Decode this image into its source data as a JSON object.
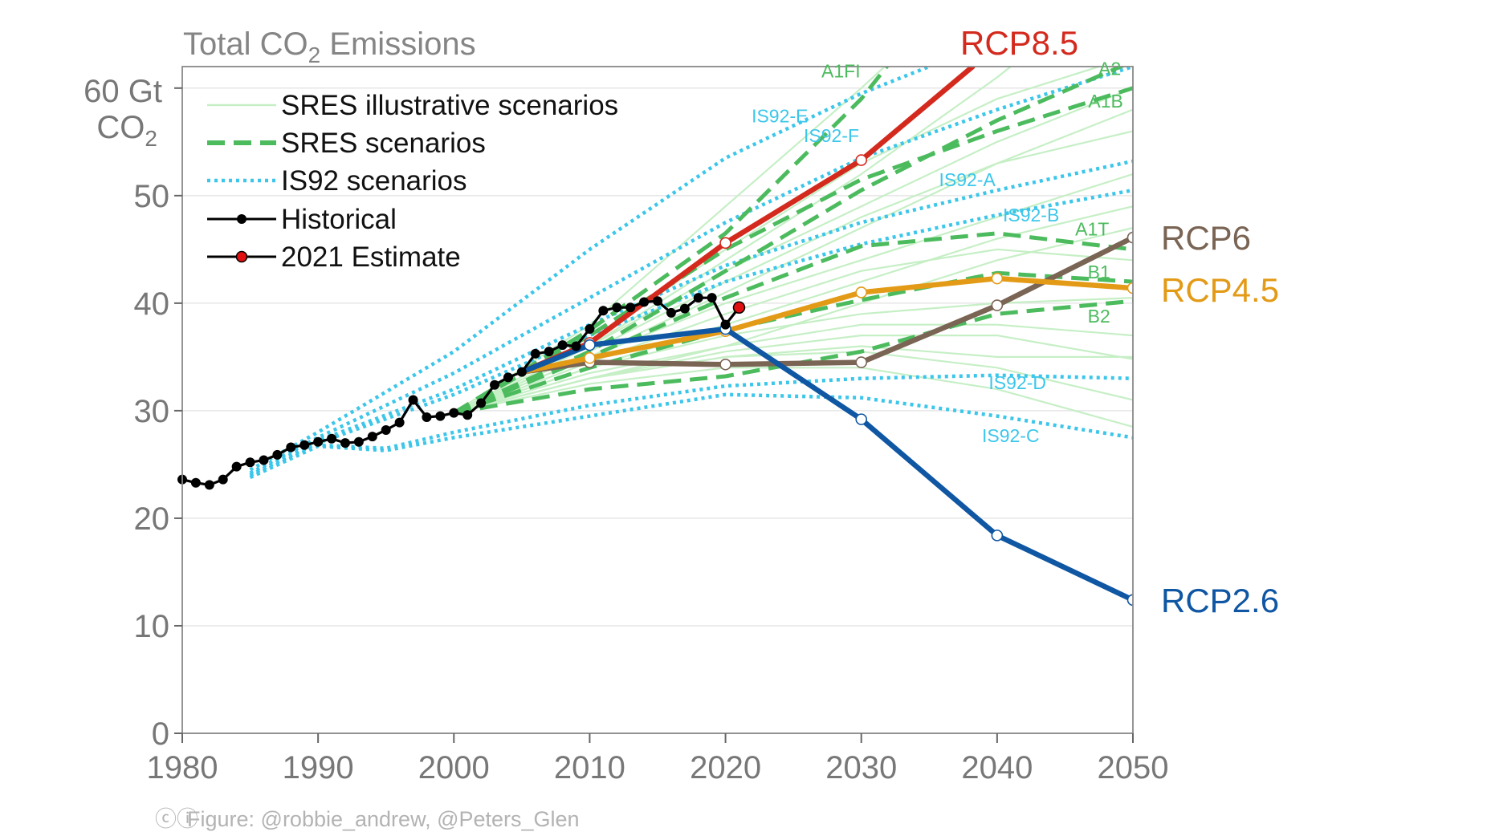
{
  "colors": {
    "sres_illustrative": "#c6efc6",
    "sres": "#4cbb5e",
    "is92": "#3cc6ea",
    "historical": "#000000",
    "estimate": "#e01010",
    "rcp85": "#d42a1e",
    "rcp6": "#7a6454",
    "rcp45": "#e39a16",
    "rcp26": "#0f56a3",
    "axis": "#666666",
    "grid": "#e6e6e6"
  },
  "credit": "Figure: @robbie_andrew, @Peters_Glen",
  "chart_data": {
    "type": "line",
    "title": "Total CO",
    "title_subscript": "2",
    "title_suffix": " Emissions",
    "ylabel_line1": "60 Gt",
    "ylabel_line2": "CO",
    "ylabel_subscript": "2",
    "xlim": [
      1980,
      2050
    ],
    "ylim": [
      0,
      62
    ],
    "x_ticks": [
      1980,
      1990,
      2000,
      2010,
      2020,
      2030,
      2040,
      2050
    ],
    "y_ticks": [
      0,
      10,
      20,
      30,
      40,
      50,
      60
    ],
    "y_tick_labels": [
      "0",
      "10",
      "20",
      "30",
      "40",
      "50",
      ""
    ],
    "legend": {
      "position": "top-left",
      "entries": [
        {
          "key": "sres_illustrative",
          "label": "SRES illustrative scenarios"
        },
        {
          "key": "sres",
          "label": "SRES scenarios"
        },
        {
          "key": "is92",
          "label": "IS92 scenarios"
        },
        {
          "key": "historical",
          "label": "Historical"
        },
        {
          "key": "estimate",
          "label": "2021 Estimate"
        }
      ]
    },
    "historical": {
      "x": [
        1980,
        1981,
        1982,
        1983,
        1984,
        1985,
        1986,
        1987,
        1988,
        1989,
        1990,
        1991,
        1992,
        1993,
        1994,
        1995,
        1996,
        1997,
        1998,
        1999,
        2000,
        2001,
        2002,
        2003,
        2004,
        2005,
        2006,
        2007,
        2008,
        2009,
        2010,
        2011,
        2012,
        2013,
        2014,
        2015,
        2016,
        2017,
        2018,
        2019,
        2020
      ],
      "y": [
        23.6,
        23.3,
        23.1,
        23.6,
        24.8,
        25.2,
        25.4,
        25.9,
        26.6,
        26.8,
        27.1,
        27.4,
        27.0,
        27.1,
        27.6,
        28.2,
        28.9,
        31.0,
        29.4,
        29.5,
        29.8,
        29.6,
        30.7,
        32.4,
        33.1,
        33.6,
        35.3,
        35.5,
        36.1,
        36.0,
        37.6,
        39.3,
        39.6,
        39.6,
        40.1,
        40.2,
        39.1,
        39.5,
        40.5,
        40.5,
        38.0
      ]
    },
    "estimate": {
      "x": [
        2020,
        2021
      ],
      "y": [
        38.0,
        39.6
      ]
    },
    "rcp": [
      {
        "name": "RCP8.5",
        "key": "rcp85",
        "x": [
          2005,
          2010,
          2020,
          2030,
          2038.2
        ],
        "y": [
          33.6,
          36.3,
          45.6,
          53.3,
          62
        ]
      },
      {
        "name": "RCP6",
        "key": "rcp6",
        "x": [
          2005,
          2010,
          2020,
          2030,
          2040,
          2050
        ],
        "y": [
          33.6,
          34.5,
          34.3,
          34.5,
          39.8,
          46.1
        ]
      },
      {
        "name": "RCP4.5",
        "key": "rcp45",
        "x": [
          2005,
          2010,
          2020,
          2030,
          2040,
          2050
        ],
        "y": [
          33.6,
          34.9,
          37.4,
          41.0,
          42.3,
          41.4
        ]
      },
      {
        "name": "RCP2.6",
        "key": "rcp26",
        "x": [
          2005,
          2010,
          2020,
          2030,
          2040,
          2050
        ],
        "y": [
          33.6,
          36.1,
          37.6,
          29.2,
          18.4,
          12.4
        ]
      }
    ],
    "sres": [
      {
        "name": "A1FI",
        "x": [
          2000,
          2010,
          2020,
          2030,
          2035
        ],
        "y": [
          29.8,
          37.5,
          46.5,
          59.0,
          67.0
        ]
      },
      {
        "name": "A2",
        "x": [
          2000,
          2010,
          2020,
          2030,
          2040,
          2050
        ],
        "y": [
          29.8,
          35.5,
          43.0,
          50.5,
          57.0,
          62.5
        ]
      },
      {
        "name": "A1B",
        "x": [
          2000,
          2010,
          2020,
          2030,
          2040,
          2050
        ],
        "y": [
          29.8,
          37.0,
          45.0,
          51.5,
          56.0,
          60.0
        ]
      },
      {
        "name": "A1T",
        "x": [
          2000,
          2010,
          2020,
          2030,
          2040,
          2050
        ],
        "y": [
          29.8,
          35.0,
          40.5,
          45.3,
          46.5,
          45.0
        ]
      },
      {
        "name": "B1",
        "x": [
          2000,
          2010,
          2020,
          2030,
          2040,
          2050
        ],
        "y": [
          29.8,
          34.0,
          37.5,
          40.3,
          42.8,
          42.0
        ]
      },
      {
        "name": "B2",
        "x": [
          2000,
          2010,
          2020,
          2030,
          2040,
          2050
        ],
        "y": [
          29.8,
          32.0,
          33.2,
          35.5,
          39.0,
          40.2
        ]
      }
    ],
    "is92": [
      {
        "name": "IS92-E",
        "x": [
          1985,
          1990,
          2000,
          2010,
          2020,
          2030,
          2035
        ],
        "y": [
          24.5,
          28.0,
          35.5,
          45.0,
          53.5,
          59.5,
          62.0
        ]
      },
      {
        "name": "IS92-F",
        "x": [
          1985,
          1990,
          2000,
          2010,
          2020,
          2030,
          2040,
          2050
        ],
        "y": [
          24.2,
          27.5,
          33.5,
          40.5,
          47.5,
          53.5,
          58.0,
          62.0
        ]
      },
      {
        "name": "IS92-A",
        "x": [
          1985,
          1990,
          2000,
          2010,
          2020,
          2030,
          2040,
          2050
        ],
        "y": [
          24.0,
          27.2,
          32.0,
          38.0,
          43.5,
          47.5,
          50.5,
          53.2
        ]
      },
      {
        "name": "IS92-B",
        "x": [
          1985,
          1990,
          2000,
          2010,
          2020,
          2030,
          2040,
          2050
        ],
        "y": [
          24.0,
          27.0,
          31.5,
          37.0,
          42.0,
          45.5,
          48.2,
          50.5
        ]
      },
      {
        "name": "IS92-D",
        "x": [
          1985,
          1990,
          1995,
          2000,
          2010,
          2020,
          2030,
          2040,
          2050
        ],
        "y": [
          23.8,
          26.8,
          26.5,
          28.0,
          30.5,
          32.3,
          33.0,
          33.3,
          33.0
        ]
      },
      {
        "name": "IS92-C",
        "x": [
          1985,
          1990,
          1995,
          2000,
          2010,
          2020,
          2030,
          2040,
          2050
        ],
        "y": [
          23.8,
          26.7,
          26.3,
          27.5,
          29.5,
          31.5,
          31.2,
          29.5,
          27.5
        ]
      }
    ],
    "illustrative": [
      [
        [
          2000,
          29.8
        ],
        [
          2010,
          36
        ],
        [
          2020,
          44
        ],
        [
          2030,
          52
        ],
        [
          2040,
          61
        ],
        [
          2045,
          66
        ]
      ],
      [
        [
          2000,
          29.8
        ],
        [
          2010,
          38
        ],
        [
          2020,
          49
        ],
        [
          2030,
          60
        ],
        [
          2036,
          67
        ]
      ],
      [
        [
          2000,
          29.8
        ],
        [
          2010,
          35
        ],
        [
          2020,
          41
        ],
        [
          2030,
          47
        ],
        [
          2040,
          53
        ],
        [
          2050,
          58
        ]
      ],
      [
        [
          2000,
          29.8
        ],
        [
          2010,
          34
        ],
        [
          2020,
          38
        ],
        [
          2030,
          42
        ],
        [
          2040,
          46
        ],
        [
          2050,
          49
        ]
      ],
      [
        [
          2000,
          29.8
        ],
        [
          2010,
          34
        ],
        [
          2020,
          37
        ],
        [
          2030,
          39
        ],
        [
          2040,
          40
        ],
        [
          2050,
          40.5
        ]
      ],
      [
        [
          2000,
          29.8
        ],
        [
          2010,
          33.5
        ],
        [
          2020,
          36
        ],
        [
          2030,
          38
        ],
        [
          2040,
          38
        ],
        [
          2050,
          37
        ]
      ],
      [
        [
          2000,
          29.8
        ],
        [
          2010,
          33
        ],
        [
          2020,
          35
        ],
        [
          2030,
          36
        ],
        [
          2040,
          35
        ],
        [
          2050,
          35
        ]
      ],
      [
        [
          2000,
          29.8
        ],
        [
          2010,
          32.5
        ],
        [
          2020,
          34
        ],
        [
          2030,
          34
        ],
        [
          2040,
          32
        ],
        [
          2050,
          28.5
        ]
      ],
      [
        [
          2000,
          29.8
        ],
        [
          2010,
          33
        ],
        [
          2020,
          36
        ],
        [
          2030,
          40
        ],
        [
          2040,
          44
        ],
        [
          2050,
          47
        ]
      ],
      [
        [
          2000,
          29.8
        ],
        [
          2010,
          35.5
        ],
        [
          2020,
          42
        ],
        [
          2030,
          48
        ],
        [
          2040,
          53
        ],
        [
          2050,
          56
        ]
      ],
      [
        [
          2000,
          29.8
        ],
        [
          2010,
          36
        ],
        [
          2020,
          43
        ],
        [
          2030,
          49
        ],
        [
          2040,
          55
        ],
        [
          2050,
          60
        ]
      ],
      [
        [
          2000,
          29.8
        ],
        [
          2010,
          34.5
        ],
        [
          2020,
          39
        ],
        [
          2030,
          43
        ],
        [
          2040,
          45
        ],
        [
          2050,
          44
        ]
      ],
      [
        [
          2000,
          29.8
        ],
        [
          2010,
          33
        ],
        [
          2020,
          35.5
        ],
        [
          2030,
          37
        ],
        [
          2040,
          37
        ],
        [
          2050,
          34.8
        ]
      ],
      [
        [
          2000,
          29.8
        ],
        [
          2010,
          35
        ],
        [
          2020,
          40
        ],
        [
          2030,
          44
        ],
        [
          2040,
          48
        ],
        [
          2050,
          52
        ]
      ],
      [
        [
          2000,
          29.8
        ],
        [
          2010,
          36.5
        ],
        [
          2020,
          45
        ],
        [
          2030,
          53
        ],
        [
          2040,
          59
        ],
        [
          2050,
          63
        ]
      ],
      [
        [
          2000,
          29.8
        ],
        [
          2010,
          33
        ],
        [
          2020,
          35
        ],
        [
          2030,
          35.5
        ],
        [
          2040,
          34
        ],
        [
          2050,
          31
        ]
      ]
    ],
    "small_labels": [
      {
        "text": "A1FI",
        "x": 2028.5,
        "y": 61.0,
        "key": "sres"
      },
      {
        "text": "A2",
        "x": 2048.3,
        "y": 61.2,
        "key": "sres"
      },
      {
        "text": "A1B",
        "x": 2048.0,
        "y": 58.2,
        "key": "sres"
      },
      {
        "text": "A1T",
        "x": 2047.0,
        "y": 46.3,
        "key": "sres"
      },
      {
        "text": "B1",
        "x": 2047.5,
        "y": 42.3,
        "key": "sres"
      },
      {
        "text": "B2",
        "x": 2047.5,
        "y": 38.2,
        "key": "sres"
      },
      {
        "text": "IS92-E",
        "x": 2024.0,
        "y": 56.8,
        "key": "is92"
      },
      {
        "text": "IS92-F",
        "x": 2027.8,
        "y": 55.0,
        "key": "is92"
      },
      {
        "text": "IS92-A",
        "x": 2037.8,
        "y": 50.9,
        "key": "is92"
      },
      {
        "text": "IS92-B",
        "x": 2042.5,
        "y": 47.6,
        "key": "is92"
      },
      {
        "text": "IS92-D",
        "x": 2041.5,
        "y": 32.0,
        "key": "is92"
      },
      {
        "text": "IS92-C",
        "x": 2041.0,
        "y": 27.1,
        "key": "is92"
      }
    ]
  }
}
